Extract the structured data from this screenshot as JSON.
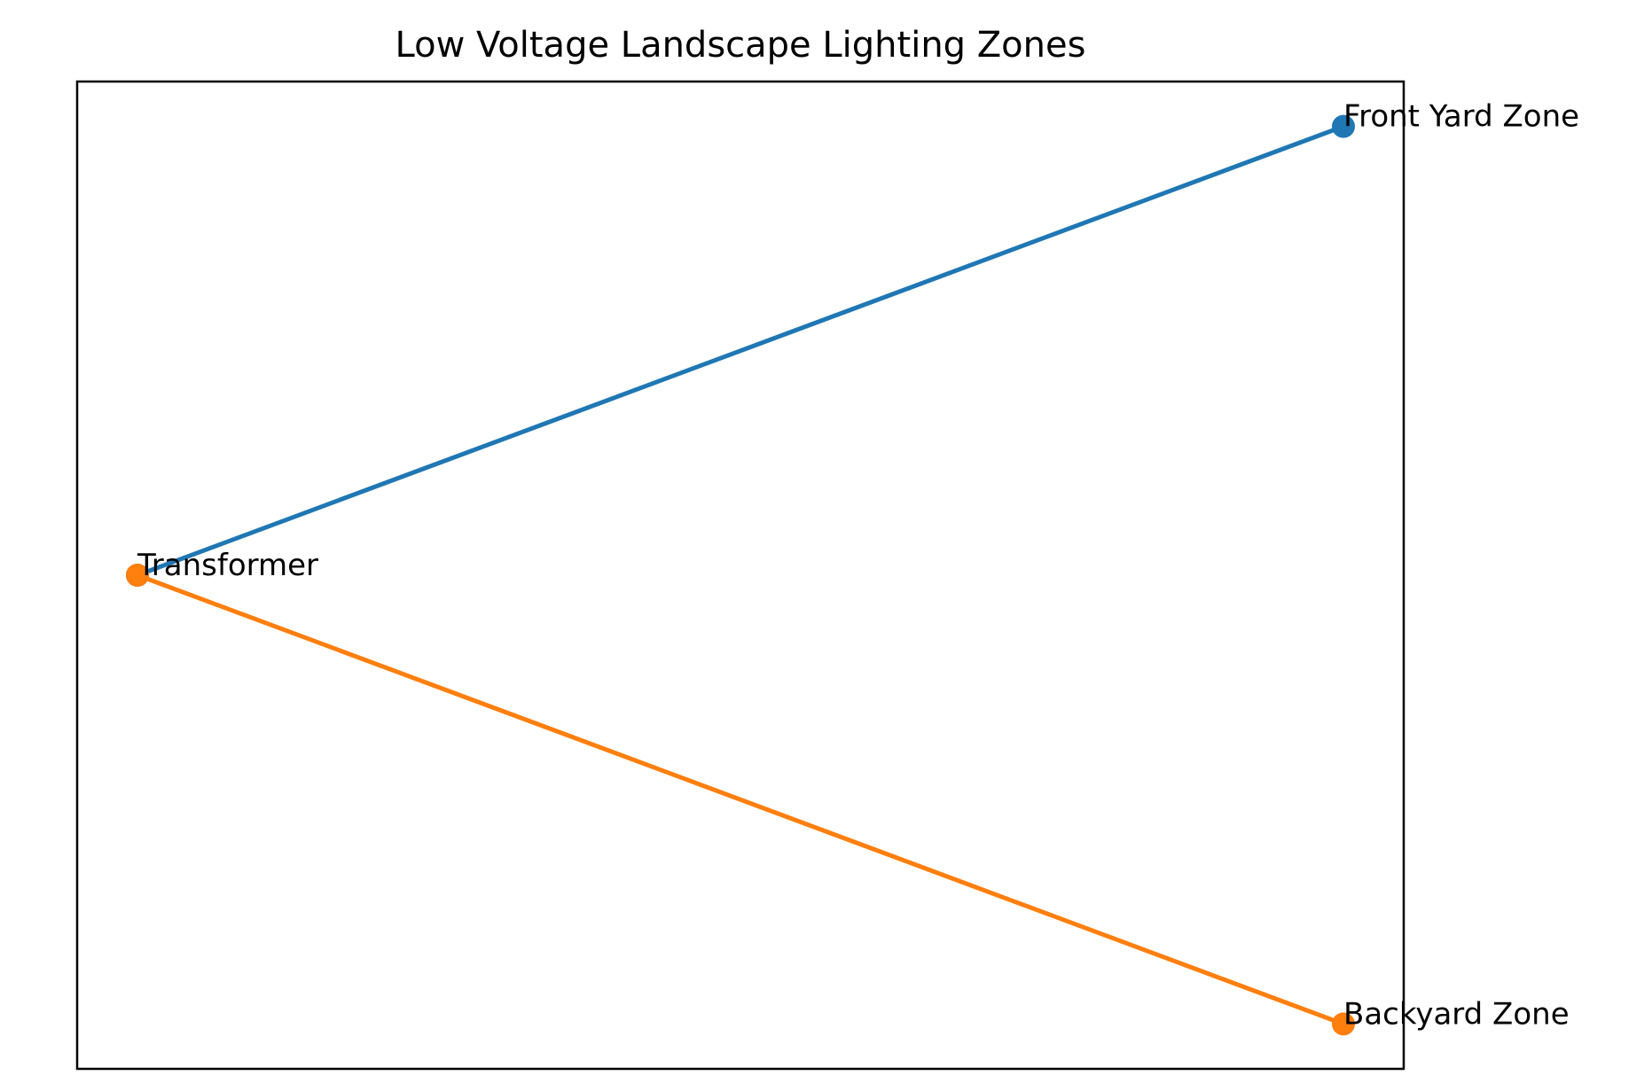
{
  "chart_data": {
    "type": "line",
    "title": "Low Voltage Landscape Lighting Zones",
    "xlim": [
      -0.05,
      1.05
    ],
    "ylim": [
      -1.1,
      1.1
    ],
    "series": [
      {
        "color": "#1f77b4",
        "x": [
          0,
          1
        ],
        "values": [
          0,
          1
        ]
      },
      {
        "color": "#ff7f0e",
        "x": [
          0,
          1
        ],
        "values": [
          0,
          -1
        ]
      }
    ],
    "annotations": [
      {
        "text": "Transformer",
        "x": 0,
        "y": 0
      },
      {
        "text": "Front Yard Zone",
        "x": 1,
        "y": 1
      },
      {
        "text": "Backyard Zone",
        "x": 1,
        "y": -1
      }
    ]
  }
}
